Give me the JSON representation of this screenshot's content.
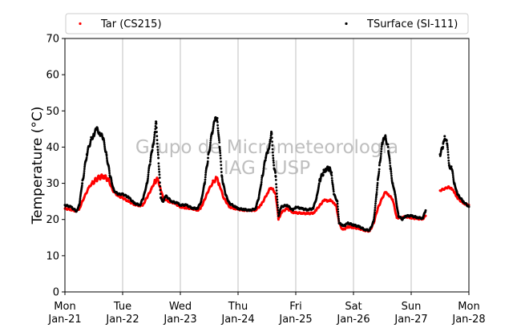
{
  "chart_data": {
    "type": "scatter",
    "title": "",
    "xlabel": "",
    "ylabel": "Temperature (°C)",
    "ylim": [
      0,
      70
    ],
    "yticks": [
      0,
      10,
      20,
      30,
      40,
      50,
      60,
      70
    ],
    "xlim": [
      0,
      7
    ],
    "xticks": [
      {
        "x": 0,
        "day": "Mon",
        "date": "Jan-21"
      },
      {
        "x": 1,
        "day": "Tue",
        "date": "Jan-22"
      },
      {
        "x": 2,
        "day": "Wed",
        "date": "Jan-23"
      },
      {
        "x": 3,
        "day": "Thu",
        "date": "Jan-24"
      },
      {
        "x": 4,
        "day": "Fri",
        "date": "Jan-25"
      },
      {
        "x": 5,
        "day": "Sat",
        "date": "Jan-26"
      },
      {
        "x": 6,
        "day": "Sun",
        "date": "Jan-27"
      },
      {
        "x": 7,
        "day": "Mon",
        "date": "Jan-28"
      }
    ],
    "grid": "vertical",
    "legend_placement": "top",
    "watermark": [
      "Grupo de Micrometeorologia",
      "IAG - USP"
    ],
    "series": [
      {
        "name": "Tar (CS215)",
        "color": "#ff0000",
        "points": [
          [
            0.0,
            23
          ],
          [
            0.1,
            22.8
          ],
          [
            0.2,
            22.3
          ],
          [
            0.25,
            23
          ],
          [
            0.33,
            26
          ],
          [
            0.42,
            29
          ],
          [
            0.5,
            30.5
          ],
          [
            0.58,
            31.5
          ],
          [
            0.67,
            32
          ],
          [
            0.75,
            31
          ],
          [
            0.83,
            28
          ],
          [
            0.92,
            26.5
          ],
          [
            1.0,
            26
          ],
          [
            1.1,
            25
          ],
          [
            1.2,
            24.2
          ],
          [
            1.3,
            23.8
          ],
          [
            1.35,
            24
          ],
          [
            1.42,
            26
          ],
          [
            1.5,
            28.5
          ],
          [
            1.56,
            30.5
          ],
          [
            1.6,
            31
          ],
          [
            1.65,
            29
          ],
          [
            1.7,
            26
          ],
          [
            1.8,
            25
          ],
          [
            1.9,
            24.5
          ],
          [
            2.0,
            23.5
          ],
          [
            2.1,
            23.2
          ],
          [
            2.2,
            23
          ],
          [
            2.3,
            22.6
          ],
          [
            2.35,
            23
          ],
          [
            2.42,
            25.5
          ],
          [
            2.5,
            28.5
          ],
          [
            2.58,
            30.5
          ],
          [
            2.62,
            31.5
          ],
          [
            2.67,
            30
          ],
          [
            2.75,
            26
          ],
          [
            2.85,
            23.5
          ],
          [
            2.95,
            23
          ],
          [
            3.0,
            22.8
          ],
          [
            3.1,
            22.6
          ],
          [
            3.2,
            22.5
          ],
          [
            3.3,
            22.6
          ],
          [
            3.4,
            24
          ],
          [
            3.5,
            27
          ],
          [
            3.55,
            28.5
          ],
          [
            3.6,
            28.5
          ],
          [
            3.65,
            27
          ],
          [
            3.7,
            20
          ],
          [
            3.75,
            22
          ],
          [
            3.85,
            23
          ],
          [
            3.95,
            22
          ],
          [
            4.0,
            21.8
          ],
          [
            4.1,
            21.8
          ],
          [
            4.2,
            21.6
          ],
          [
            4.3,
            21.8
          ],
          [
            4.35,
            22.5
          ],
          [
            4.42,
            24
          ],
          [
            4.5,
            25.5
          ],
          [
            4.55,
            25
          ],
          [
            4.6,
            25.5
          ],
          [
            4.65,
            24.5
          ],
          [
            4.7,
            24
          ],
          [
            4.75,
            19
          ],
          [
            4.8,
            17.5
          ],
          [
            4.85,
            17.3
          ],
          [
            4.9,
            18
          ],
          [
            5.0,
            17.8
          ],
          [
            5.1,
            17.5
          ],
          [
            5.2,
            17
          ],
          [
            5.28,
            16.8
          ],
          [
            5.35,
            19
          ],
          [
            5.42,
            23
          ],
          [
            5.5,
            26
          ],
          [
            5.55,
            27.5
          ],
          [
            5.6,
            27
          ],
          [
            5.68,
            25.5
          ],
          [
            5.75,
            20.5
          ],
          [
            5.85,
            20.5
          ],
          [
            5.9,
            20.8
          ],
          [
            6.0,
            20.5
          ],
          [
            6.1,
            20.2
          ],
          [
            6.2,
            20.2
          ],
          [
            6.25,
            21
          ],
          [
            6.5,
            28
          ],
          [
            6.58,
            28.5
          ],
          [
            6.65,
            29
          ],
          [
            6.7,
            28.5
          ],
          [
            6.75,
            27.5
          ],
          [
            6.8,
            26
          ],
          [
            6.9,
            24.5
          ],
          [
            7.0,
            24
          ]
        ]
      },
      {
        "name": "TSurface (SI-111)",
        "color": "#000000",
        "points": [
          [
            0.0,
            24
          ],
          [
            0.1,
            23.5
          ],
          [
            0.2,
            22.3
          ],
          [
            0.25,
            24
          ],
          [
            0.3,
            30
          ],
          [
            0.38,
            38
          ],
          [
            0.45,
            42
          ],
          [
            0.5,
            43.5
          ],
          [
            0.55,
            45
          ],
          [
            0.6,
            44
          ],
          [
            0.66,
            42.5
          ],
          [
            0.72,
            38
          ],
          [
            0.78,
            32
          ],
          [
            0.85,
            28
          ],
          [
            0.92,
            27
          ],
          [
            1.0,
            27
          ],
          [
            1.1,
            26.2
          ],
          [
            1.2,
            24.5
          ],
          [
            1.3,
            24
          ],
          [
            1.36,
            26
          ],
          [
            1.42,
            30
          ],
          [
            1.48,
            36
          ],
          [
            1.52,
            40
          ],
          [
            1.56,
            44
          ],
          [
            1.58,
            47
          ],
          [
            1.62,
            37
          ],
          [
            1.66,
            26
          ],
          [
            1.7,
            25
          ],
          [
            1.75,
            26.5
          ],
          [
            1.85,
            25
          ],
          [
            1.95,
            24.5
          ],
          [
            2.0,
            24
          ],
          [
            2.1,
            24
          ],
          [
            2.2,
            23.2
          ],
          [
            2.3,
            23
          ],
          [
            2.36,
            25
          ],
          [
            2.42,
            30
          ],
          [
            2.48,
            37
          ],
          [
            2.55,
            44
          ],
          [
            2.6,
            47.5
          ],
          [
            2.64,
            48
          ],
          [
            2.68,
            40
          ],
          [
            2.72,
            32
          ],
          [
            2.78,
            27
          ],
          [
            2.85,
            24.5
          ],
          [
            2.95,
            23.5
          ],
          [
            3.0,
            23
          ],
          [
            3.1,
            22.8
          ],
          [
            3.2,
            22.5
          ],
          [
            3.3,
            23
          ],
          [
            3.36,
            26
          ],
          [
            3.42,
            32
          ],
          [
            3.48,
            37
          ],
          [
            3.52,
            39
          ],
          [
            3.56,
            42
          ],
          [
            3.58,
            44
          ],
          [
            3.62,
            35
          ],
          [
            3.65,
            32
          ],
          [
            3.7,
            21
          ],
          [
            3.75,
            23.5
          ],
          [
            3.85,
            24
          ],
          [
            3.95,
            22.5
          ],
          [
            4.0,
            23.5
          ],
          [
            4.1,
            23
          ],
          [
            4.2,
            22.7
          ],
          [
            4.3,
            23
          ],
          [
            4.36,
            26
          ],
          [
            4.42,
            31
          ],
          [
            4.48,
            33
          ],
          [
            4.52,
            34
          ],
          [
            4.58,
            34
          ],
          [
            4.62,
            33
          ],
          [
            4.66,
            27
          ],
          [
            4.72,
            25
          ],
          [
            4.75,
            19
          ],
          [
            4.8,
            18.5
          ],
          [
            4.85,
            18.3
          ],
          [
            4.9,
            19
          ],
          [
            5.0,
            18.5
          ],
          [
            5.1,
            18
          ],
          [
            5.2,
            17.2
          ],
          [
            5.28,
            17
          ],
          [
            5.35,
            19.5
          ],
          [
            5.4,
            27
          ],
          [
            5.45,
            35
          ],
          [
            5.5,
            41
          ],
          [
            5.55,
            43
          ],
          [
            5.6,
            40
          ],
          [
            5.64,
            34
          ],
          [
            5.68,
            30
          ],
          [
            5.72,
            27
          ],
          [
            5.78,
            21
          ],
          [
            5.85,
            20
          ],
          [
            5.9,
            21
          ],
          [
            6.0,
            21
          ],
          [
            6.1,
            20.6
          ],
          [
            6.2,
            20.3
          ],
          [
            6.25,
            22.5
          ],
          [
            6.5,
            38
          ],
          [
            6.55,
            40
          ],
          [
            6.58,
            43
          ],
          [
            6.62,
            41
          ],
          [
            6.66,
            35
          ],
          [
            6.7,
            34
          ],
          [
            6.75,
            30
          ],
          [
            6.8,
            27
          ],
          [
            6.9,
            25
          ],
          [
            7.0,
            23.5
          ]
        ]
      }
    ]
  }
}
